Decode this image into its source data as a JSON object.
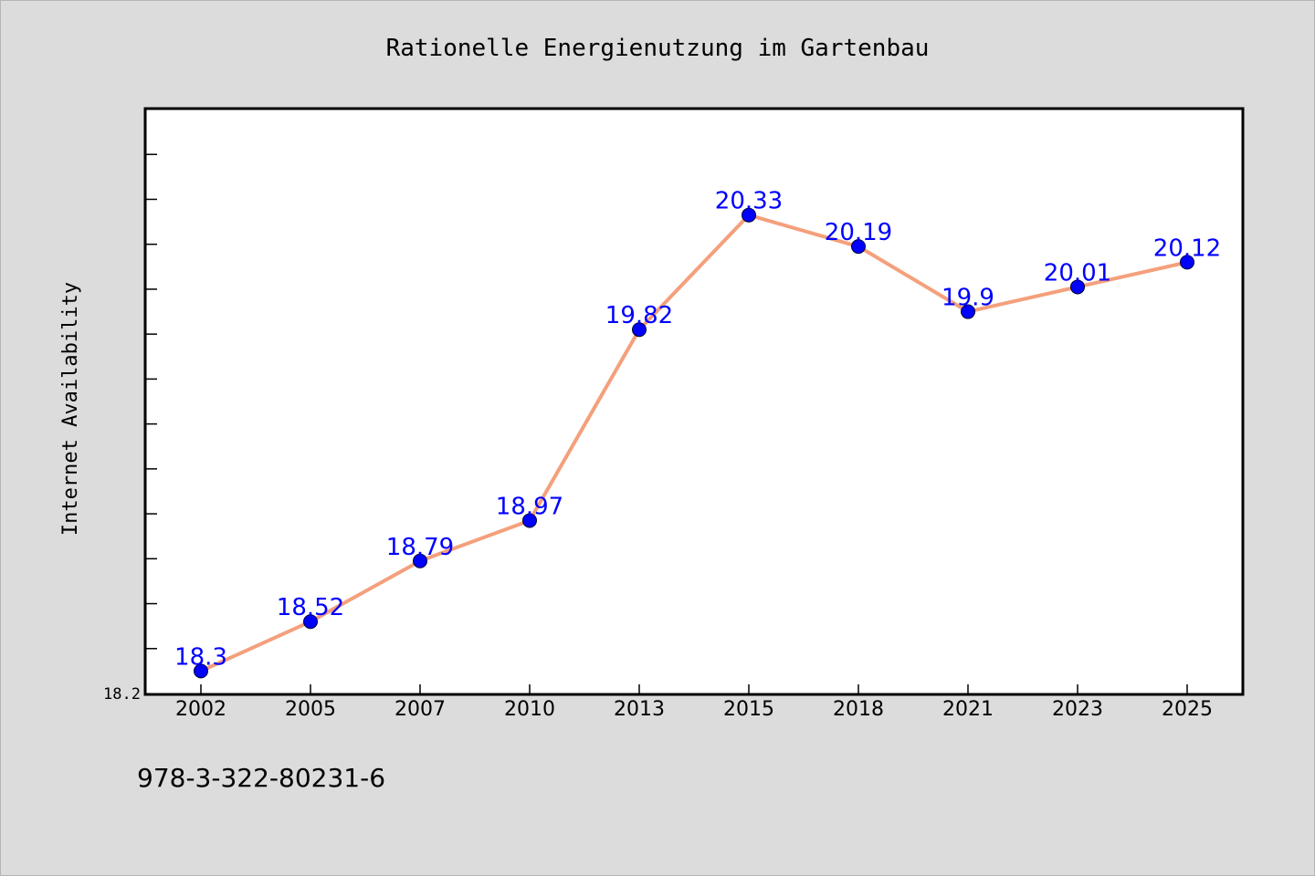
{
  "chart_data": {
    "type": "line",
    "title": "Rationelle Energienutzung im Gartenbau",
    "ylabel": "Internet Availability",
    "xlabel": "",
    "categories": [
      "2002",
      "2005",
      "2007",
      "2010",
      "2013",
      "2015",
      "2018",
      "2021",
      "2023",
      "2025"
    ],
    "series": [
      {
        "values": [
          18.3,
          18.52,
          18.79,
          18.97,
          19.82,
          20.33,
          20.19,
          19.9,
          20.01,
          20.12
        ],
        "data_labels": [
          "18.3",
          "18.52",
          "18.79",
          "18.97",
          "19.82",
          "20.33",
          "20.19",
          "19.9",
          "20.01",
          "20.12"
        ],
        "line_color": "#f4a07c",
        "marker_color": "#0000ff"
      }
    ],
    "ylim": [
      18.2,
      20.8
    ],
    "y_tick_labels": [
      "18.2"
    ],
    "grid": false,
    "legend": "none"
  },
  "footer_text": "978-3-322-80231-6",
  "colors": {
    "background": "#dcdcdc",
    "plot_area": "#ffffff",
    "line": "#f4a07c",
    "marker": "#0000ff",
    "data_label": "#0000ff"
  }
}
